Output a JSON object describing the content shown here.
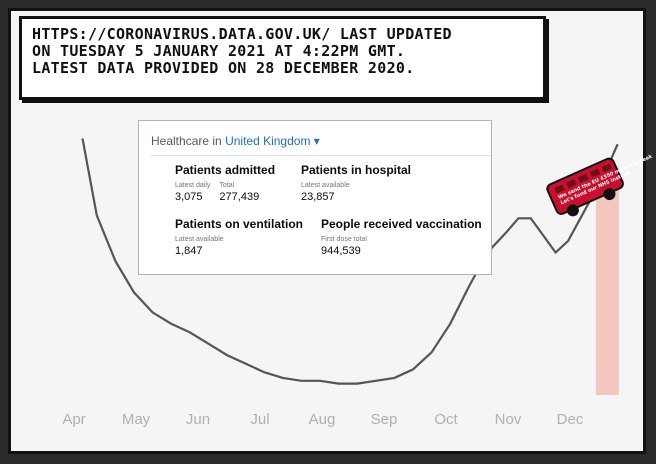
{
  "caption": {
    "lines": [
      "https://coronavirus.data.gov.uk/ last updated",
      "on Tuesday 5 January 2021 at 4:22pm GMT.",
      "Latest data provided on 28 December 2020."
    ]
  },
  "card": {
    "prefix": "Healthcare in",
    "region": "United Kingdom",
    "chevron": "▾",
    "metrics": {
      "admitted": {
        "title": "Patients admitted",
        "label1": "Latest daily",
        "value1": "3,075",
        "label2": "Total",
        "value2": "277,439"
      },
      "hospital": {
        "title": "Patients in hospital",
        "label1": "Latest available",
        "value1": "23,857"
      },
      "ventilation": {
        "title": "Patients on ventilation",
        "label1": "Latest available",
        "value1": "1,847"
      },
      "vaccination": {
        "title": "People received vaccination",
        "label1": "First dose total",
        "value1": "944,539"
      }
    }
  },
  "bus": {
    "slogan_top": "We send the EU £350 million a week",
    "slogan_bottom": "Let's fund our NHS instead"
  },
  "colors": {
    "line": "#555555",
    "highlight": "#f4c6c0",
    "axis_text": "#b0b0b0"
  },
  "chart_data": {
    "type": "line",
    "title": "",
    "xlabel": "",
    "ylabel": "",
    "x_ticks": [
      "Apr",
      "May",
      "Jun",
      "Jul",
      "Aug",
      "Sep",
      "Oct",
      "Nov",
      "Dec"
    ],
    "x_range": [
      0,
      9
    ],
    "ylim": [
      0,
      1
    ],
    "grid": false,
    "highlight_span": [
      8.45,
      8.82
    ],
    "series": [
      {
        "x": [
          0.17,
          0.4,
          0.7,
          1.0,
          1.3,
          1.6,
          1.9,
          2.2,
          2.5,
          2.8,
          3.1,
          3.4,
          3.7,
          4.0,
          4.3,
          4.6,
          4.9,
          5.2,
          5.5,
          5.8,
          6.1,
          6.4,
          6.7,
          7.0,
          7.2,
          7.4,
          7.6,
          7.8,
          8.0,
          8.2,
          8.4,
          8.6,
          8.8
        ],
        "y": [
          0.9,
          0.63,
          0.47,
          0.36,
          0.29,
          0.25,
          0.22,
          0.18,
          0.14,
          0.11,
          0.08,
          0.06,
          0.05,
          0.05,
          0.04,
          0.04,
          0.05,
          0.06,
          0.09,
          0.15,
          0.25,
          0.38,
          0.5,
          0.57,
          0.62,
          0.62,
          0.56,
          0.5,
          0.54,
          0.62,
          0.7,
          0.78,
          0.88
        ]
      }
    ]
  }
}
